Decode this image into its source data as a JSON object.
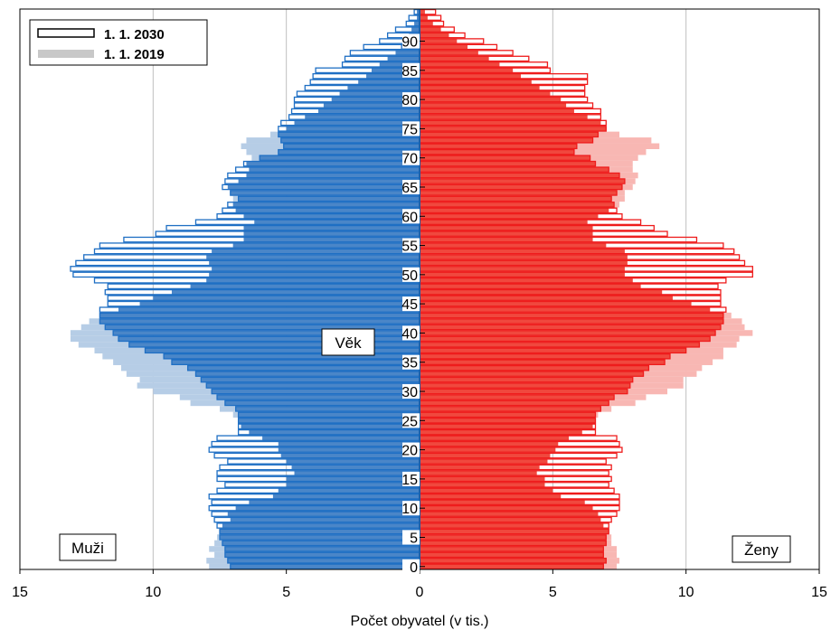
{
  "chart_data": {
    "type": "bar",
    "orientation": "horizontal-population-pyramid",
    "xlabel": "Počet obyvatel (v tis.)",
    "ylabel": "Věk",
    "xlim": [
      -15,
      15
    ],
    "x_tick_labels": [
      "15",
      "10",
      "5",
      "0",
      "5",
      "10",
      "15"
    ],
    "y_tick_labels": [
      "0",
      "5",
      "10",
      "15",
      "20",
      "25",
      "30",
      "35",
      "40",
      "45",
      "50",
      "55",
      "60",
      "65",
      "70",
      "75",
      "80",
      "85",
      "90"
    ],
    "grid": true,
    "legend": {
      "placement": "top-left",
      "entries": [
        {
          "label": "1. 1. 2030",
          "style": "outline"
        },
        {
          "label": "1. 1. 2019",
          "style": "filled"
        }
      ]
    },
    "side_labels": {
      "left": "Muži",
      "right": "Ženy"
    },
    "colors": {
      "men_2030": "#1f6fc4",
      "men_2030_fill": "#4a86c8",
      "men_2019": "#b6cde6",
      "women_2030": "#ee1c1c",
      "women_2030_fill": "#f0483e",
      "women_2019": "#f8b7b3"
    },
    "ages": [
      0,
      1,
      2,
      3,
      4,
      5,
      6,
      7,
      8,
      9,
      10,
      11,
      12,
      13,
      14,
      15,
      16,
      17,
      18,
      19,
      20,
      21,
      22,
      23,
      24,
      25,
      26,
      27,
      28,
      29,
      30,
      31,
      32,
      33,
      34,
      35,
      36,
      37,
      38,
      39,
      40,
      41,
      42,
      43,
      44,
      45,
      46,
      47,
      48,
      49,
      50,
      51,
      52,
      53,
      54,
      55,
      56,
      57,
      58,
      59,
      60,
      61,
      62,
      63,
      64,
      65,
      66,
      67,
      68,
      69,
      70,
      71,
      72,
      73,
      74,
      75,
      76,
      77,
      78,
      79,
      80,
      81,
      82,
      83,
      84,
      85,
      86,
      87,
      88,
      89,
      90,
      91,
      92,
      93,
      94,
      95
    ],
    "series": [
      {
        "name": "1. 1. 2019",
        "sex": "Muži",
        "values": [
          7.9,
          8.0,
          7.7,
          7.9,
          7.7,
          7.6,
          7.5,
          7.4,
          7.1,
          7.2,
          6.9,
          6.4,
          5.5,
          5.3,
          5.0,
          5.0,
          4.7,
          4.8,
          5.0,
          5.2,
          5.3,
          5.3,
          5.9,
          6.4,
          6.7,
          6.8,
          7.0,
          7.5,
          8.6,
          9.0,
          10.0,
          10.6,
          10.5,
          11.0,
          11.2,
          11.5,
          11.9,
          12.2,
          12.8,
          13.1,
          13.1,
          12.7,
          12.4,
          12.0,
          11.3,
          10.5,
          10.0,
          9.3,
          8.6,
          8.0,
          7.9,
          7.8,
          7.9,
          8.0,
          7.8,
          7.0,
          6.6,
          6.6,
          6.6,
          6.2,
          6.6,
          6.9,
          7.0,
          7.0,
          7.1,
          7.2,
          6.8,
          6.5,
          6.4,
          6.5,
          6.3,
          6.5,
          6.7,
          6.5,
          5.6,
          5.0,
          4.7,
          4.3,
          3.8,
          3.6,
          3.3,
          3.0,
          2.7,
          2.3,
          2.0,
          1.8,
          1.5,
          1.2,
          0.9,
          0.7,
          0.5,
          0.4,
          0.3,
          0.2,
          0.1,
          0.1
        ]
      },
      {
        "name": "1. 1. 2030",
        "sex": "Muži",
        "values": [
          7.1,
          7.2,
          7.3,
          7.3,
          7.4,
          7.5,
          7.5,
          7.6,
          7.7,
          7.8,
          7.9,
          7.8,
          7.9,
          7.6,
          7.3,
          7.6,
          7.6,
          7.5,
          7.2,
          7.7,
          7.9,
          7.8,
          7.6,
          6.8,
          6.8,
          6.8,
          6.8,
          6.9,
          7.3,
          7.6,
          7.8,
          8.0,
          8.2,
          8.4,
          8.7,
          9.3,
          9.6,
          10.3,
          10.9,
          11.3,
          11.5,
          11.8,
          12.0,
          12.0,
          12.0,
          11.7,
          11.7,
          11.8,
          11.7,
          12.2,
          13.0,
          13.1,
          12.9,
          12.6,
          12.2,
          12.0,
          11.1,
          9.9,
          9.5,
          8.4,
          7.6,
          7.4,
          7.2,
          6.8,
          7.1,
          7.4,
          7.3,
          7.2,
          6.9,
          6.6,
          6.0,
          5.3,
          5.1,
          5.2,
          5.3,
          5.3,
          5.2,
          4.9,
          4.8,
          4.7,
          4.7,
          4.6,
          4.3,
          4.1,
          4.0,
          3.9,
          2.9,
          2.8,
          2.6,
          2.1,
          1.5,
          1.2,
          0.9,
          0.5,
          0.4,
          0.2
        ]
      },
      {
        "name": "1. 1. 2019",
        "sex": "Ženy",
        "values": [
          7.4,
          7.5,
          7.4,
          7.4,
          7.2,
          7.2,
          7.1,
          6.9,
          6.8,
          6.7,
          6.5,
          6.2,
          5.3,
          5.0,
          4.7,
          4.7,
          4.4,
          4.5,
          4.8,
          4.9,
          5.1,
          5.2,
          5.6,
          6.1,
          6.5,
          6.6,
          6.7,
          7.2,
          8.1,
          8.5,
          9.3,
          9.9,
          9.9,
          10.4,
          10.6,
          11.0,
          11.4,
          11.4,
          11.9,
          12.0,
          12.5,
          12.2,
          12.1,
          11.7,
          10.9,
          10.2,
          9.5,
          9.1,
          8.3,
          8.0,
          7.7,
          7.7,
          7.8,
          7.8,
          7.7,
          7.0,
          6.5,
          6.5,
          6.5,
          6.3,
          6.7,
          7.1,
          7.5,
          7.7,
          7.7,
          8.0,
          8.1,
          8.2,
          8.0,
          8.0,
          8.2,
          8.5,
          9.0,
          8.7,
          7.5,
          7.0,
          6.8,
          6.3,
          5.8,
          5.5,
          5.3,
          4.9,
          4.5,
          4.2,
          3.8,
          3.5,
          3.0,
          2.6,
          2.2,
          1.8,
          1.4,
          1.1,
          0.8,
          0.5,
          0.3,
          0.2
        ]
      },
      {
        "name": "1. 1. 2030",
        "sex": "Ženy",
        "values": [
          6.9,
          7.0,
          6.9,
          6.9,
          7.0,
          7.0,
          7.1,
          7.1,
          7.2,
          7.4,
          7.5,
          7.5,
          7.5,
          7.3,
          7.1,
          7.2,
          7.1,
          7.2,
          7.0,
          7.4,
          7.6,
          7.5,
          7.4,
          6.6,
          6.6,
          6.6,
          6.6,
          6.8,
          7.1,
          7.3,
          7.8,
          7.9,
          8.0,
          8.4,
          8.6,
          9.2,
          9.4,
          10.0,
          10.5,
          10.9,
          11.1,
          11.3,
          11.4,
          11.4,
          11.5,
          11.3,
          11.3,
          11.3,
          11.2,
          11.5,
          12.5,
          12.5,
          12.2,
          12.0,
          11.8,
          11.4,
          10.4,
          9.3,
          8.8,
          8.3,
          7.6,
          7.4,
          7.3,
          7.2,
          7.4,
          7.6,
          7.7,
          7.5,
          7.1,
          6.6,
          6.4,
          5.8,
          5.9,
          6.5,
          6.7,
          7.0,
          7.0,
          6.8,
          6.8,
          6.5,
          6.3,
          6.2,
          6.2,
          6.3,
          6.3,
          4.9,
          4.8,
          4.1,
          3.5,
          2.9,
          2.4,
          1.7,
          1.3,
          0.9,
          0.8,
          0.6
        ]
      }
    ]
  }
}
